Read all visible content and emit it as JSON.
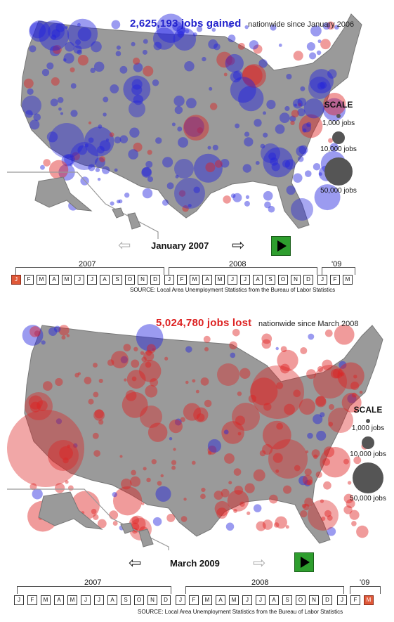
{
  "colors": {
    "gain": "#2222dd",
    "loss": "#dd2222",
    "land": "#9a9a9a",
    "active_month": "#e05838",
    "play": "#2e9e2e"
  },
  "panels": [
    {
      "headline_number": "2,625,193 jobs gained",
      "headline_rest": "nationwide since January 2006",
      "headline_color": "#2222cc",
      "period": "January 2007",
      "prev_arrow_state": "inactive",
      "next_arrow_state": "active",
      "active_month_index": 0,
      "source": "SOURCE: Local Area Unemployment Statistics from the Bureau of Labor Statistics"
    },
    {
      "headline_number": "5,024,780 jobs lost",
      "headline_rest": "nationwide since March 2008",
      "headline_color": "#dd2222",
      "period": "March 2009",
      "prev_arrow_state": "active",
      "next_arrow_state": "inactive",
      "active_month_index": 26,
      "source": "SOURCE: Local Area Unemployment Statistics from the Bureau of Labor Statistics"
    }
  ],
  "scale": {
    "title": "SCALE",
    "items": [
      {
        "label": "1,000 jobs"
      },
      {
        "label": "10,000 jobs"
      },
      {
        "label": "50,000 jobs"
      }
    ]
  },
  "timeline": {
    "years": [
      "2007",
      "2008",
      "'09"
    ],
    "months": [
      "J",
      "F",
      "M",
      "A",
      "M",
      "J",
      "J",
      "A",
      "S",
      "O",
      "N",
      "D",
      "J",
      "F",
      "M",
      "A",
      "M",
      "J",
      "J",
      "A",
      "S",
      "O",
      "N",
      "D",
      "J",
      "F",
      "M"
    ]
  },
  "icons": {
    "prev": "left-arrow-icon",
    "next": "right-arrow-icon",
    "play": "play-icon"
  }
}
